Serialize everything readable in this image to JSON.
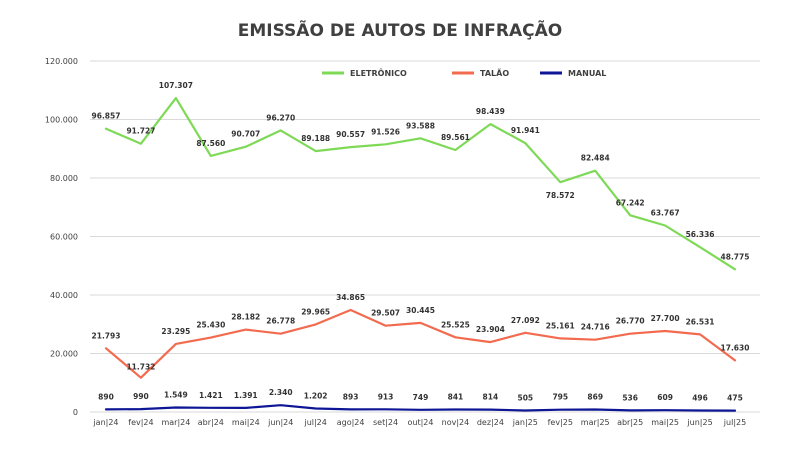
{
  "chart_data": {
    "type": "line",
    "title": "EMISSÃO DE AUTOS DE INFRAÇÃO",
    "xlabel": "",
    "ylabel": "",
    "ylim": [
      0,
      120000
    ],
    "yticks": [
      "0",
      "20.000",
      "40.000",
      "60.000",
      "80.000",
      "100.000",
      "120.000"
    ],
    "yticks_values": [
      0,
      20000,
      40000,
      60000,
      80000,
      100000,
      120000
    ],
    "grid": true,
    "legend_position": "top-right",
    "categories": [
      "jan|24",
      "fev|24",
      "mar|24",
      "abr|24",
      "mai|24",
      "jun|24",
      "jul|24",
      "ago|24",
      "set|24",
      "out|24",
      "nov|24",
      "dez|24",
      "jan|25",
      "fev|25",
      "mar|25",
      "abr|25",
      "mai|25",
      "jun|25",
      "jul|25"
    ],
    "series": [
      {
        "name": "ELETRÔNICO",
        "color": "#7ed957",
        "values": [
          96857,
          91727,
          107307,
          87560,
          90707,
          96270,
          89188,
          90557,
          91526,
          93588,
          89561,
          98439,
          91941,
          78572,
          82484,
          67242,
          63767,
          56336,
          48775
        ],
        "labels": [
          "96.857",
          "91.727",
          "107.307",
          "87.560",
          "90.707",
          "96.270",
          "89.188",
          "90.557",
          "91.526",
          "93.588",
          "89.561",
          "98.439",
          "91.941",
          "78.572",
          "82.484",
          "67.242",
          "63.767",
          "56.336",
          "48.775"
        ]
      },
      {
        "name": "TALÃO",
        "color": "#f26b4f",
        "values": [
          21793,
          11732,
          23295,
          25430,
          28182,
          26778,
          29965,
          34865,
          29507,
          30445,
          25525,
          23904,
          27092,
          25161,
          24716,
          26770,
          27700,
          26531,
          17630
        ],
        "labels": [
          "21.793",
          "11.732",
          "23.295",
          "25.430",
          "28.182",
          "26.778",
          "29.965",
          "34.865",
          "29.507",
          "30.445",
          "25.525",
          "23.904",
          "27.092",
          "25.161",
          "24.716",
          "26.770",
          "27.700",
          "26.531",
          "17.630"
        ]
      },
      {
        "name": "MANUAL",
        "color": "#0d1694",
        "values": [
          890,
          990,
          1549,
          1421,
          1391,
          2340,
          1202,
          893,
          913,
          749,
          841,
          814,
          505,
          795,
          869,
          536,
          609,
          496,
          475
        ],
        "labels": [
          "890",
          "990",
          "1.549",
          "1.421",
          "1.391",
          "2.340",
          "1.202",
          "893",
          "913",
          "749",
          "841",
          "814",
          "505",
          "795",
          "869",
          "536",
          "609",
          "496",
          "475"
        ]
      }
    ]
  }
}
